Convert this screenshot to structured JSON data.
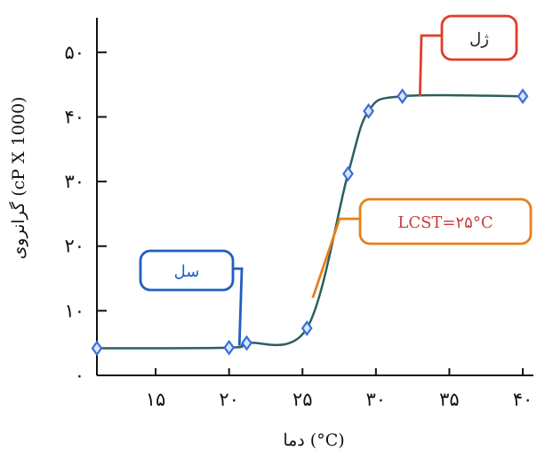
{
  "chart_data": {
    "type": "line",
    "title": "",
    "xlabel": "دما (°C)",
    "ylabel": "گرانروی (cP X 1000)",
    "xlim": [
      11,
      40
    ],
    "ylim": [
      0,
      53
    ],
    "x_tick_values": [
      15,
      20,
      25,
      30,
      35,
      40
    ],
    "x_tick_labels": [
      "۱۵",
      "۲۰",
      "۲۵",
      "۳۰",
      "۳۵",
      "۴۰"
    ],
    "y_tick_values": [
      0,
      10,
      20,
      30,
      40,
      50
    ],
    "y_tick_labels": [
      "۰",
      "۱۰",
      "۲۰",
      "۳۰",
      "۴۰",
      "۵۰"
    ],
    "grid": false,
    "series": [
      {
        "color": "#2e5e5e",
        "marker_color": "#3b6fd6",
        "x": [
          11,
          20,
          21.2,
          25.3,
          28.1,
          29.5,
          31.8,
          40
        ],
        "y": [
          4.2,
          4.3,
          5.0,
          7.3,
          31.2,
          40.9,
          43.2,
          43.2
        ]
      }
    ],
    "annotations": [
      {
        "text": "سل",
        "color": "#1f5fbf",
        "border": "#1f5fbf",
        "target": [
          20.7,
          4.6
        ]
      },
      {
        "text": "LCST=۲۵°C",
        "color": "#c83c3c",
        "border": "#e8801a",
        "target": [
          25.7,
          12.0
        ]
      },
      {
        "text": "ژل",
        "color": "#222222",
        "border": "#e03c2a",
        "target": [
          33.0,
          43.2
        ]
      }
    ]
  }
}
